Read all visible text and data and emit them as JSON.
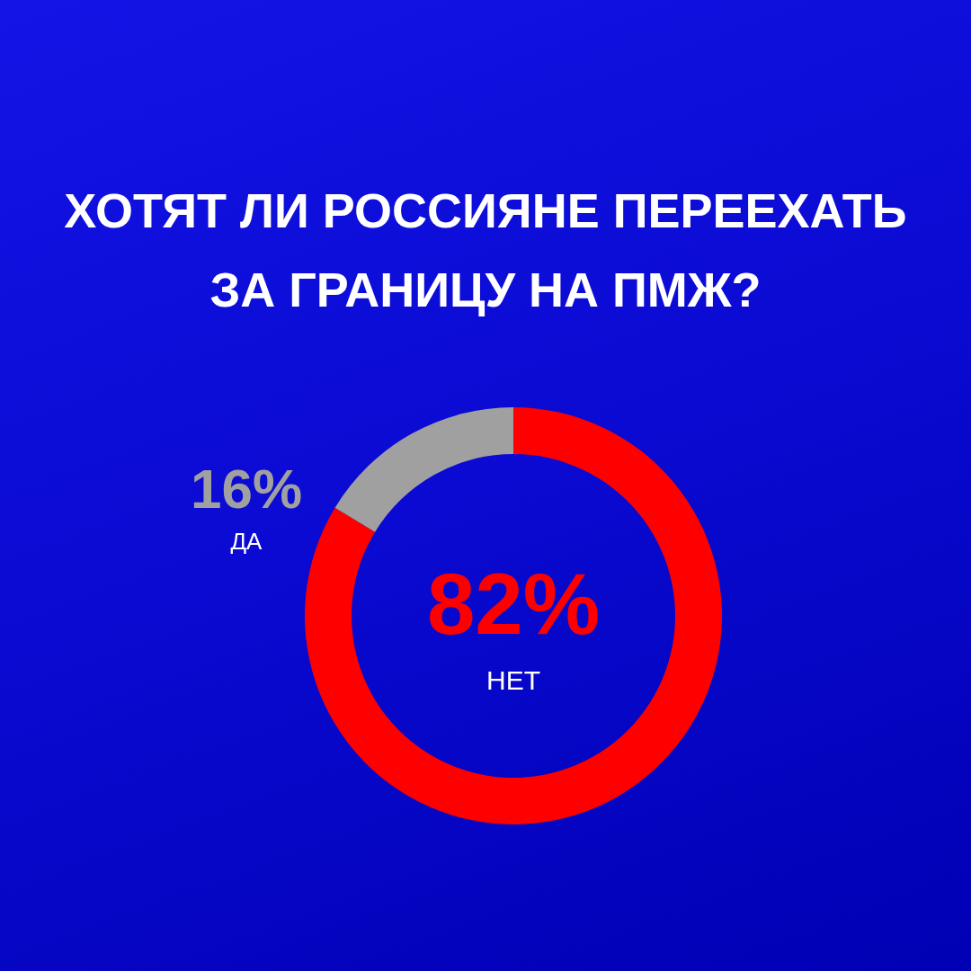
{
  "chart_data": {
    "type": "donut",
    "title": "ХОТЯТ ЛИ РОССИЯНЕ ПЕРЕЕХАТЬ ЗА ГРАНИЦУ НА ПМЖ?",
    "categories": [
      "НЕТ",
      "ДА"
    ],
    "values": [
      82,
      16
    ],
    "colors": [
      "#ff0000",
      "#a0a0a0"
    ],
    "value_labels": [
      "82%",
      "16%"
    ]
  }
}
